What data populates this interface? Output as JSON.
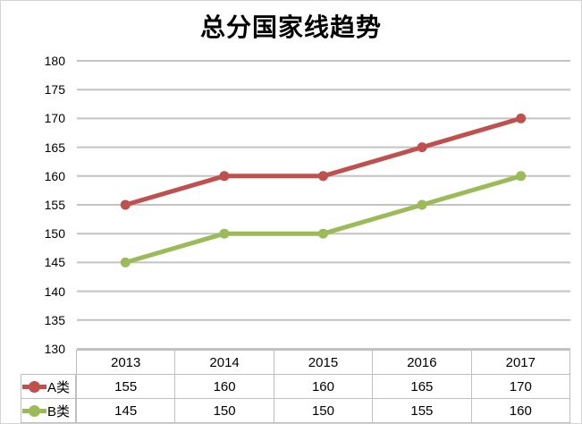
{
  "chart_data": {
    "type": "line",
    "title": "总分国家线趋势",
    "categories": [
      "2013",
      "2014",
      "2015",
      "2016",
      "2017"
    ],
    "series": [
      {
        "name": "A类",
        "color": "#c0504d",
        "values": [
          155,
          160,
          160,
          165,
          170
        ]
      },
      {
        "name": "B类",
        "color": "#9bbb59",
        "values": [
          145,
          150,
          150,
          155,
          160
        ]
      }
    ],
    "y_axis": {
      "min": 130,
      "max": 180,
      "step": 5,
      "ticks": [
        180,
        175,
        170,
        165,
        160,
        155,
        150,
        145,
        140,
        135,
        130
      ]
    },
    "xlabel": "",
    "ylabel": "",
    "grid": true,
    "gridline_color": "#c3c3c3",
    "table_border_color": "#bfbfbf",
    "legend_position": "table-left",
    "marker": "circle"
  }
}
